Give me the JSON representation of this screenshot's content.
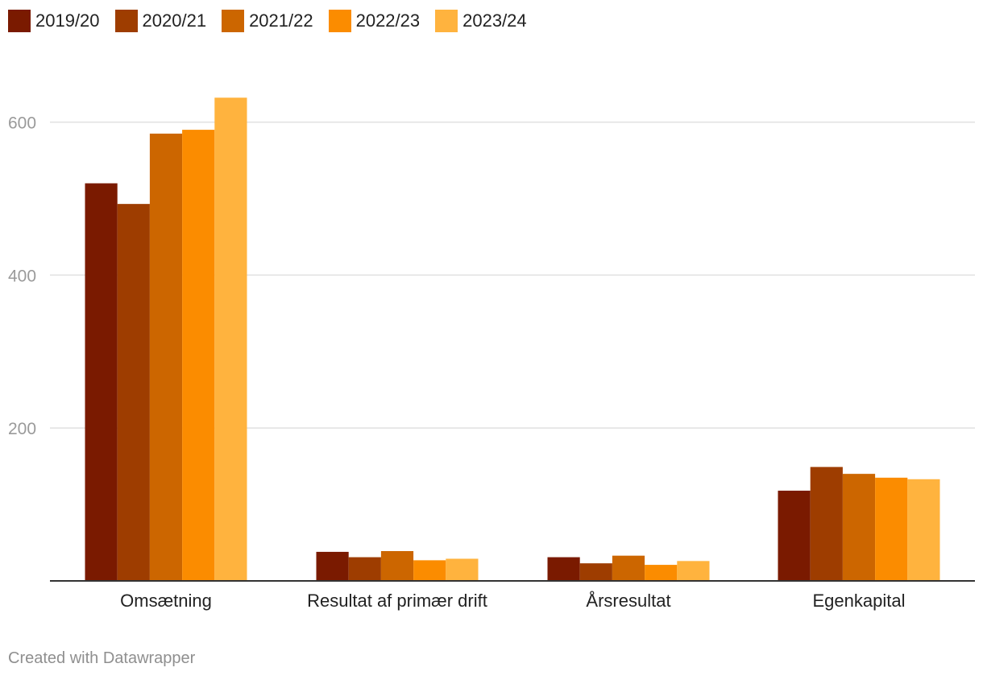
{
  "chart_data": {
    "type": "bar",
    "title": "",
    "xlabel": "",
    "ylabel": "",
    "categories": [
      "Omsætning",
      "Resultat af primær drift",
      "Årsresultat",
      "Egenkapital"
    ],
    "series": [
      {
        "name": "2019/20",
        "color": "#7a1a00",
        "values": [
          520,
          38,
          31,
          118
        ]
      },
      {
        "name": "2020/21",
        "color": "#9e3d00",
        "values": [
          493,
          31,
          23,
          149
        ]
      },
      {
        "name": "2021/22",
        "color": "#cc6600",
        "values": [
          585,
          39,
          33,
          140
        ]
      },
      {
        "name": "2022/23",
        "color": "#fb8c00",
        "values": [
          590,
          27,
          21,
          135
        ]
      },
      {
        "name": "2023/24",
        "color": "#ffb33e",
        "values": [
          632,
          29,
          26,
          133
        ]
      }
    ],
    "ylim": [
      0,
      680
    ],
    "yticks": [
      200,
      400,
      600
    ],
    "grid": true,
    "legend_position": "top-left",
    "baseline_color": "#333333",
    "grid_color": "#e0e0e0"
  },
  "credit": "Created with Datawrapper"
}
